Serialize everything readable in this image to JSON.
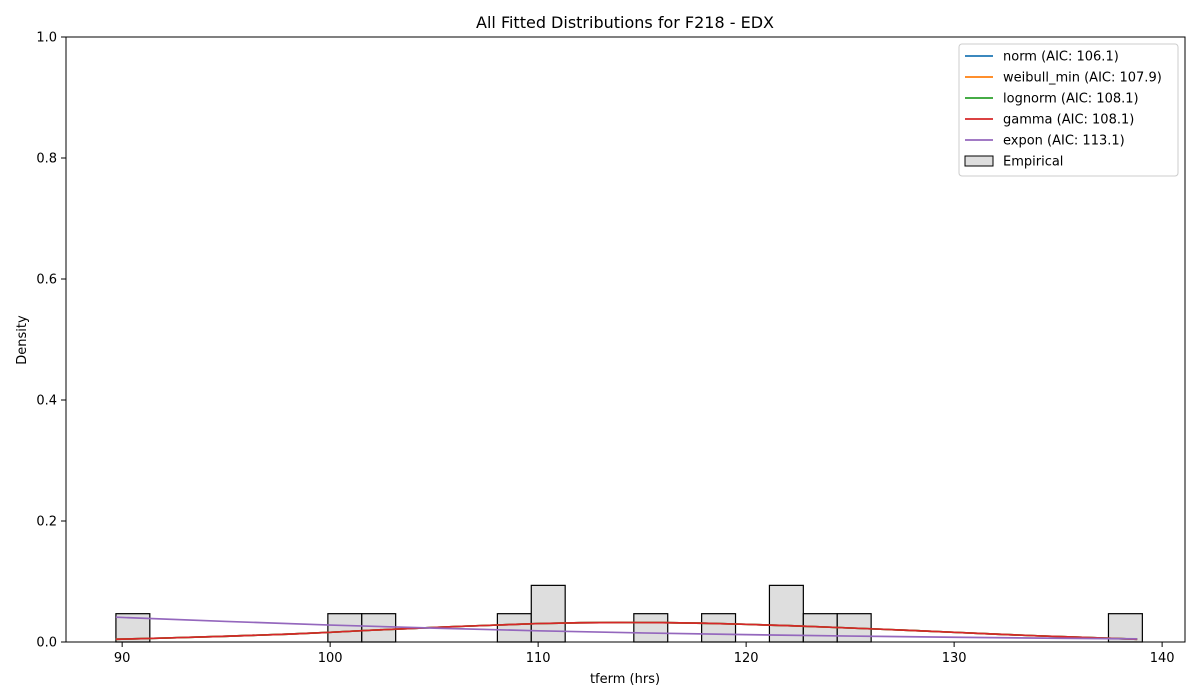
{
  "chart_data": {
    "type": "line",
    "title": "All Fitted Distributions for F218 - EDX",
    "xlabel": "tferm (hrs)",
    "ylabel": "Density",
    "xlim": [
      87.3,
      141.1
    ],
    "ylim": [
      0,
      1.0
    ],
    "xticks": [
      90,
      100,
      110,
      120,
      130,
      140
    ],
    "yticks": [
      0.0,
      0.2,
      0.4,
      0.6,
      0.8,
      1.0
    ],
    "grid": false,
    "legend_position": "top-right",
    "series": [
      {
        "name": "norm (AIC: 106.1)",
        "color": "#1f77b4",
        "x": [
          89.7,
          92,
          95,
          98,
          100,
          102,
          104,
          106,
          108,
          110,
          112,
          114,
          116,
          118,
          120,
          122,
          124,
          126,
          128,
          130,
          132,
          134,
          136,
          138.8
        ],
        "y": [
          0.0045,
          0.0065,
          0.0095,
          0.013,
          0.016,
          0.0195,
          0.0225,
          0.0255,
          0.028,
          0.0305,
          0.0318,
          0.0322,
          0.032,
          0.031,
          0.0292,
          0.027,
          0.0245,
          0.0218,
          0.019,
          0.016,
          0.013,
          0.0102,
          0.0078,
          0.0045
        ]
      },
      {
        "name": "weibull_min (AIC: 107.9)",
        "color": "#ff7f0e",
        "x": [
          89.7,
          92,
          95,
          98,
          100,
          102,
          104,
          106,
          108,
          110,
          112,
          114,
          116,
          118,
          120,
          122,
          124,
          126,
          128,
          130,
          132,
          134,
          136,
          138.8
        ],
        "y": [
          0.0045,
          0.0065,
          0.0095,
          0.013,
          0.016,
          0.0195,
          0.0225,
          0.0255,
          0.028,
          0.0305,
          0.0318,
          0.0322,
          0.032,
          0.031,
          0.0292,
          0.027,
          0.0245,
          0.0218,
          0.019,
          0.016,
          0.013,
          0.0102,
          0.0078,
          0.0045
        ]
      },
      {
        "name": "lognorm (AIC: 108.1)",
        "color": "#2ca02c",
        "x": [
          89.7,
          92,
          95,
          98,
          100,
          102,
          104,
          106,
          108,
          110,
          112,
          114,
          116,
          118,
          120,
          122,
          124,
          126,
          128,
          130,
          132,
          134,
          136,
          138.8
        ],
        "y": [
          0.0045,
          0.0065,
          0.0095,
          0.013,
          0.016,
          0.0195,
          0.0225,
          0.0255,
          0.028,
          0.0305,
          0.0318,
          0.0322,
          0.032,
          0.031,
          0.0292,
          0.027,
          0.0245,
          0.0218,
          0.019,
          0.016,
          0.013,
          0.0102,
          0.0078,
          0.0045
        ]
      },
      {
        "name": "gamma (AIC: 108.1)",
        "color": "#d62728",
        "x": [
          89.7,
          92,
          95,
          98,
          100,
          102,
          104,
          106,
          108,
          110,
          112,
          114,
          116,
          118,
          120,
          122,
          124,
          126,
          128,
          130,
          132,
          134,
          136,
          138.8
        ],
        "y": [
          0.0045,
          0.0065,
          0.0095,
          0.013,
          0.016,
          0.0195,
          0.0225,
          0.0255,
          0.028,
          0.0305,
          0.0318,
          0.0322,
          0.032,
          0.031,
          0.0292,
          0.027,
          0.0245,
          0.0218,
          0.019,
          0.016,
          0.013,
          0.0102,
          0.0078,
          0.0045
        ]
      },
      {
        "name": "expon (AIC: 113.1)",
        "color": "#9467bd",
        "x": [
          89.7,
          95,
          100,
          105,
          110,
          115,
          120,
          125,
          130,
          135,
          138.8
        ],
        "y": [
          0.041,
          0.034,
          0.028,
          0.023,
          0.0185,
          0.015,
          0.0122,
          0.0098,
          0.0078,
          0.0062,
          0.0052
        ]
      }
    ],
    "histogram": {
      "name": "Empirical",
      "fill": "#dedede",
      "edge": "#000000",
      "bins": [
        {
          "x0": 89.7,
          "x1": 91.33,
          "value": 0.0468
        },
        {
          "x0": 99.89,
          "x1": 101.52,
          "value": 0.0468
        },
        {
          "x0": 101.52,
          "x1": 103.15,
          "value": 0.0468
        },
        {
          "x0": 108.04,
          "x1": 109.67,
          "value": 0.0468
        },
        {
          "x0": 109.67,
          "x1": 111.3,
          "value": 0.0936
        },
        {
          "x0": 114.6,
          "x1": 116.23,
          "value": 0.0468
        },
        {
          "x0": 117.86,
          "x1": 119.49,
          "value": 0.0468
        },
        {
          "x0": 121.12,
          "x1": 122.75,
          "value": 0.0936
        },
        {
          "x0": 122.75,
          "x1": 124.38,
          "value": 0.0468
        },
        {
          "x0": 124.38,
          "x1": 126.01,
          "value": 0.0468
        },
        {
          "x0": 137.42,
          "x1": 139.05,
          "value": 0.0468
        }
      ]
    }
  }
}
